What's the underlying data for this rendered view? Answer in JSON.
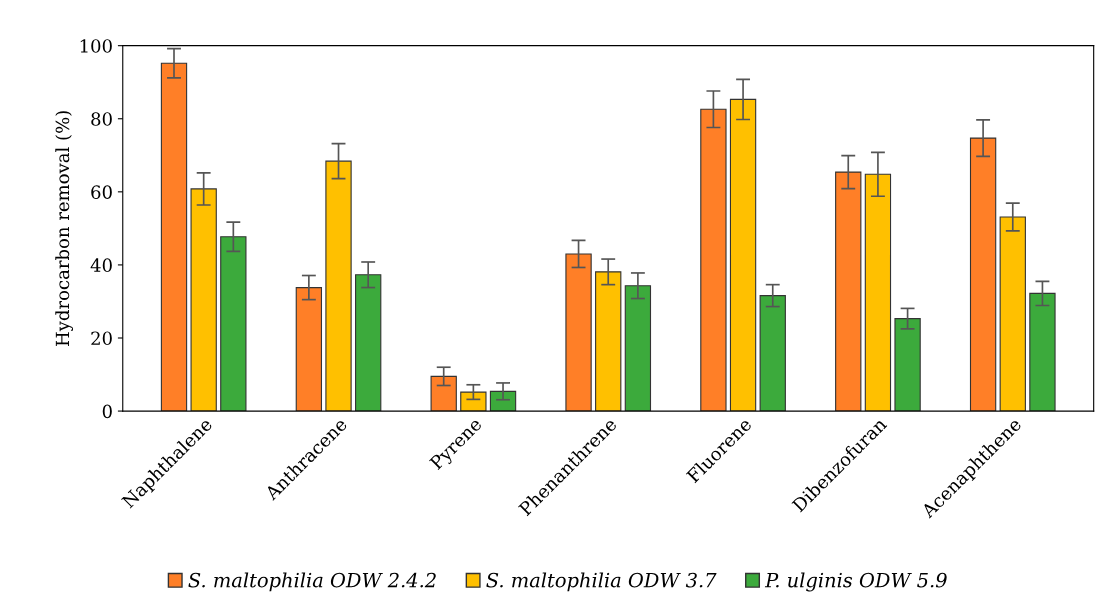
{
  "chart_data": {
    "type": "bar",
    "ylabel": "Hydrocarbon removal (%)",
    "categories": [
      "Naphthalene",
      "Anthracene",
      "Pyrene",
      "Phenanthrene",
      "Fluorene",
      "Dibenzofuran",
      "Acenaphthene"
    ],
    "series": [
      {
        "name": "S. maltophilia ODW 2.4.2",
        "color": "#ff7f27",
        "values": [
          95.2,
          33.8,
          9.5,
          43.0,
          82.6,
          65.4,
          74.7
        ],
        "errors": [
          4.0,
          3.3,
          2.5,
          3.7,
          5.0,
          4.5,
          5.0
        ]
      },
      {
        "name": "S. maltophilia ODW 3.7",
        "color": "#ffc000",
        "values": [
          60.8,
          68.4,
          5.2,
          38.1,
          85.3,
          64.8,
          53.1
        ],
        "errors": [
          4.4,
          4.8,
          2.0,
          3.5,
          5.5,
          6.0,
          3.8
        ]
      },
      {
        "name": "P. ulginis ODW 5.9",
        "color": "#3caa3c",
        "values": [
          47.7,
          37.3,
          5.4,
          34.3,
          31.6,
          25.3,
          32.2
        ],
        "errors": [
          4.0,
          3.5,
          2.3,
          3.5,
          3.0,
          2.8,
          3.3
        ]
      }
    ],
    "ylim": [
      0,
      100
    ],
    "yticks": [
      0,
      20,
      40,
      60,
      80,
      100
    ],
    "grid": false,
    "legend": "bottom"
  }
}
